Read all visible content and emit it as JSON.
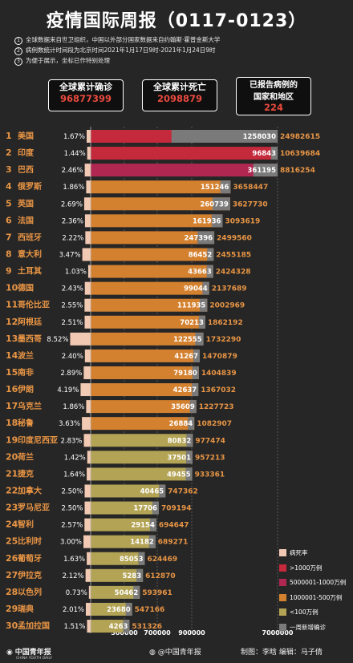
{
  "title": "疫情国际周报（0117-0123）",
  "notes": [
    {
      "num": "1",
      "text": "全球数据来自世卫组织，中国以外部分国家数据来自约翰斯·霍普金斯大学"
    },
    {
      "num": "2",
      "text": "病例数统计时间段为北京时间2021年1月17日9时-2021年1月24日9时"
    },
    {
      "num": "3",
      "text": "为便于展示，坐标已作特别处理"
    }
  ],
  "stats": [
    {
      "label": "全球累计确诊",
      "value": "96877399"
    },
    {
      "label": "全球累计死亡",
      "value": "2098879"
    },
    {
      "label": "已报告病例的国家和地区",
      "label1": "已报告病例的",
      "label2": "国家和地区",
      "value": "224"
    }
  ],
  "colors": {
    "over_10m": "#c4293c",
    "5m_10m": "#b02852",
    "1m_5m": "#d4812f",
    "under_1m": "#b3a355",
    "death_rate": "#f2c9b3",
    "weekly_new": "#7a7a7a",
    "total_text": "#e89545"
  },
  "chart_data": {
    "type": "bar",
    "categories": [
      "美国",
      "印度",
      "巴西",
      "俄罗斯",
      "英国",
      "法国",
      "西班牙",
      "意大利",
      "土耳其",
      "德国",
      "哥伦比亚",
      "阿根廷",
      "墨西哥",
      "波兰",
      "南非",
      "伊朗",
      "乌克兰",
      "秘鲁",
      "印度尼西亚",
      "荷兰",
      "捷克",
      "加拿大",
      "罗马尼亚",
      "智利",
      "比利时",
      "葡萄牙",
      "伊拉克",
      "以色列",
      "瑞典",
      "孟加拉国"
    ],
    "death_rate": [
      "1.67%",
      "1.44%",
      "2.46%",
      "1.86%",
      "2.69%",
      "2.36%",
      "2.22%",
      "3.47%",
      "1.03%",
      "2.43%",
      "2.55%",
      "2.51%",
      "8.52%",
      "2.40%",
      "2.89%",
      "4.19%",
      "1.86%",
      "3.63%",
      "2.83%",
      "1.42%",
      "1.64%",
      "2.50%",
      "2.50%",
      "2.57%",
      "3.00%",
      "1.63%",
      "2.12%",
      "0.73%",
      "2.01%",
      "1.51%"
    ],
    "cumulative_cases": [
      24982615,
      10639684,
      8816254,
      3658447,
      3627730,
      3093619,
      2499560,
      2455185,
      2424328,
      2137689,
      2002969,
      1862192,
      1732290,
      1470879,
      1404839,
      1367032,
      1227723,
      1082907,
      977474,
      957213,
      933361,
      747362,
      709194,
      694647,
      689271,
      624469,
      612870,
      593961,
      547166,
      531326
    ],
    "weekly_new_cases": [
      1258030,
      96843,
      361195,
      151246,
      260739,
      161936,
      247396,
      86452,
      43663,
      99044,
      111935,
      70213,
      122555,
      41267,
      79180,
      42637,
      35609,
      26884,
      80832,
      37501,
      49455,
      40465,
      17706,
      29154,
      14182,
      85053,
      5283,
      50462,
      23680,
      4263
    ],
    "x_ticks": [
      "500000",
      "700000",
      "900000",
      "7000000"
    ],
    "legend": [
      {
        "label": "病死率",
        "color": "#f2c9b3"
      },
      {
        "label": ">1000万例",
        "color": "#c4293c"
      },
      {
        "label": "5000001-1000万例",
        "color": "#b02852"
      },
      {
        "label": "1000001-500万例",
        "color": "#d4812f"
      },
      {
        "label": "<100万例",
        "color": "#b3a355"
      },
      {
        "label": "一周新增确诊",
        "color": "#7a7a7a"
      }
    ]
  },
  "footer": {
    "logo": "中国青年报",
    "logo_sub": "CHINA YOUTH DAILY",
    "weibo": "@中国青年报",
    "credits": "制图：李晗   编辑：马子倩"
  }
}
